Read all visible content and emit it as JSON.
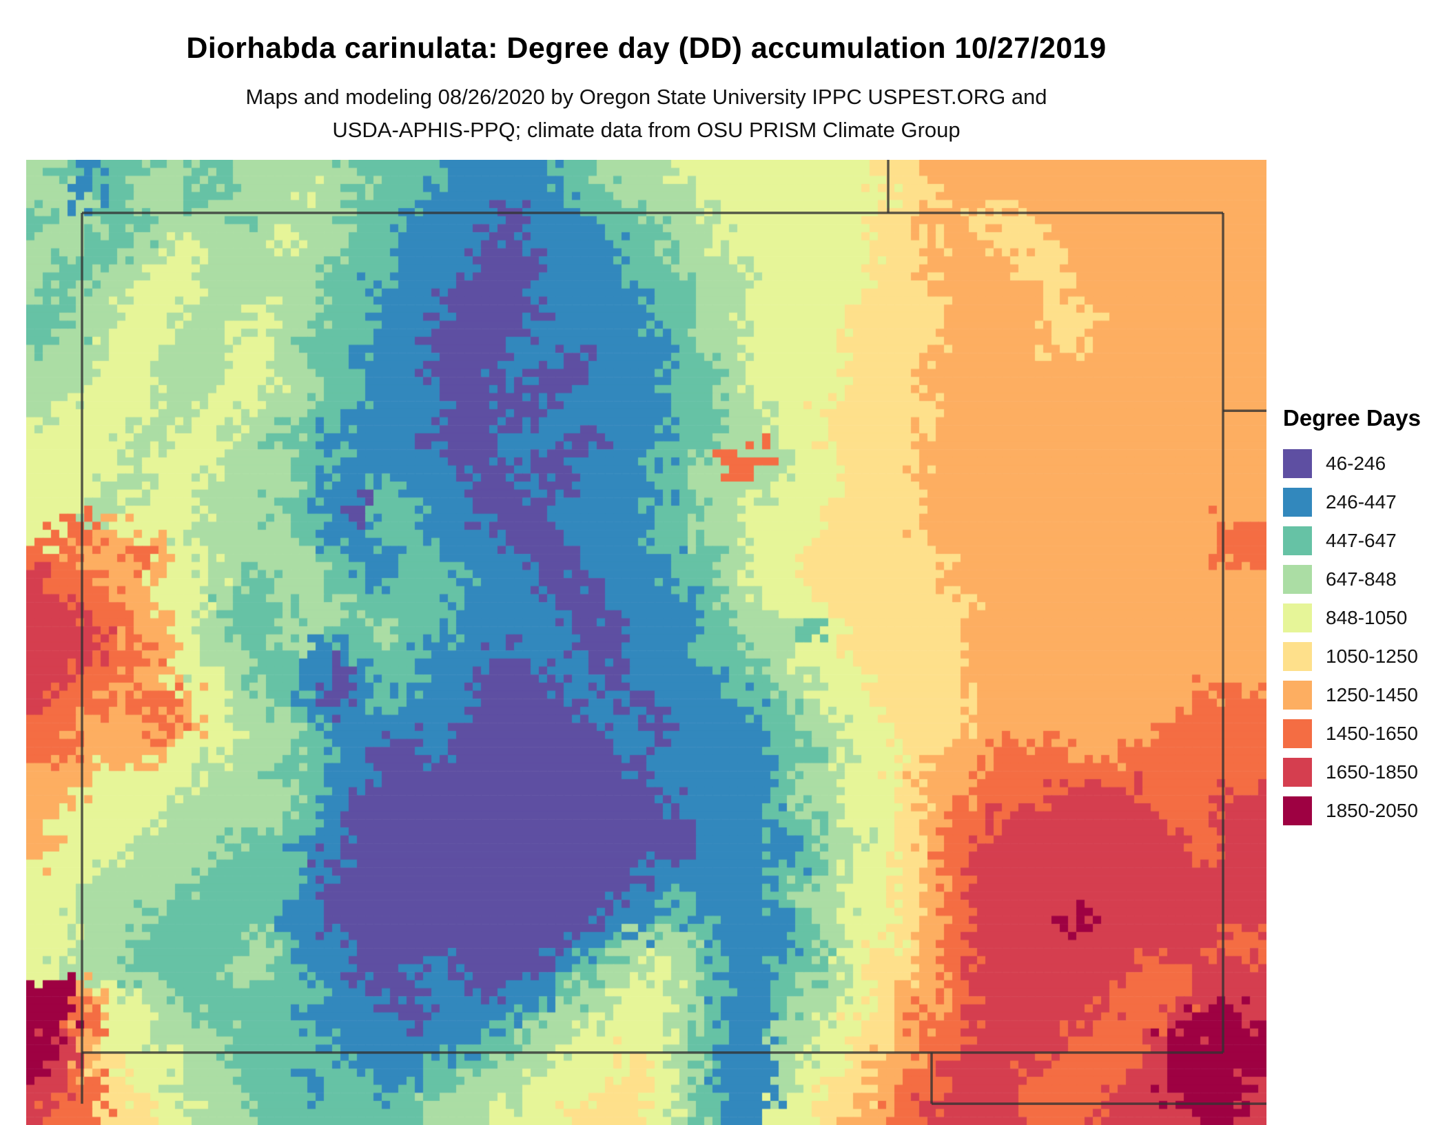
{
  "header": {
    "title": "Diorhabda carinulata: Degree day (DD) accumulation 10/27/2019",
    "subtitle_line1": "Maps and modeling 08/26/2020 by Oregon State University IPPC USPEST.ORG and",
    "subtitle_line2": "USDA-APHIS-PPQ; climate data from OSU PRISM Climate Group"
  },
  "legend": {
    "title": "Degree Days",
    "entries": [
      {
        "label": "46-246",
        "color": "#5e4fa2"
      },
      {
        "label": "246-447",
        "color": "#3288bd"
      },
      {
        "label": "447-647",
        "color": "#66c2a5"
      },
      {
        "label": "647-848",
        "color": "#abdda4"
      },
      {
        "label": "848-1050",
        "color": "#e6f598"
      },
      {
        "label": "1050-1250",
        "color": "#fee08b"
      },
      {
        "label": "1250-1450",
        "color": "#fdae61"
      },
      {
        "label": "1450-1650",
        "color": "#f46d43"
      },
      {
        "label": "1650-1850",
        "color": "#d53e4f"
      },
      {
        "label": "1850-2050",
        "color": "#9e0142"
      }
    ]
  },
  "map": {
    "region": "Colorado",
    "palette": [
      "#5e4fa2",
      "#3288bd",
      "#66c2a5",
      "#abdda4",
      "#e6f598",
      "#fee08b",
      "#fdae61",
      "#f46d43",
      "#d53e4f",
      "#9e0142"
    ],
    "border_color": "#333333",
    "border_lines": [
      {
        "x1": 0.045,
        "y1": 0.055,
        "x2": 0.045,
        "y2": 0.978
      },
      {
        "x1": 0.045,
        "y1": 0.055,
        "x2": 0.965,
        "y2": 0.055
      },
      {
        "x1": 0.965,
        "y1": 0.055,
        "x2": 0.965,
        "y2": 0.925
      },
      {
        "x1": 0.045,
        "y1": 0.925,
        "x2": 0.965,
        "y2": 0.925
      },
      {
        "x1": 0.695,
        "y1": 0.0,
        "x2": 0.695,
        "y2": 0.055
      },
      {
        "x1": 0.965,
        "y1": 0.26,
        "x2": 1.0,
        "y2": 0.26
      },
      {
        "x1": 0.73,
        "y1": 0.925,
        "x2": 0.73,
        "y2": 0.978
      },
      {
        "x1": 0.73,
        "y1": 0.978,
        "x2": 1.0,
        "y2": 0.978
      }
    ],
    "grid": [
      "32122332333332222111122333444444445566666666666666",
      "33123322333433221111112233344444444556666666666666",
      "23322333233332211110111223334444445566555666666666",
      "33223343334332211100111122334444445556655566666666",
      "32233443333322211100011122333444445566665566666666",
      "32334443333322111000111112233444445556666566666666",
      "22334433343322111000011112233444455556666556666666",
      "23344433443222110000111111233444455556666556666666",
      "33344333443221110001100111223444455566666666666666",
      "33444334443322111001001111223444455566666666666666",
      "34444334433221111000011111223344555556666666666666",
      "44443344332211110001110111223344555566666666666666",
      "44443444333221111001001112237734455566666666666666",
      "44433443333211211100101111233344455566666666666666",
      "44334443332210221100011112233444555566666666666666",
      "47764433333211221110001112233444555566666666666677",
      "77667644333321122111001111223445555556666666666677",
      "87766443323322122211100111223445555556666666666666",
      "88776443222332222111100111123344555555666666666666",
      "88876643223322322111110011122332455555666666666666",
      "88877643322112221110110011122334455555666666666666",
      "88776644322101221100011011112233445555666666666666",
      "87767764332101211100001101111223445555666666666777",
      "77666764433211111000000110111123344555666666667777",
      "77666644333221001000000011111122344556677766777777",
      "66644443332211000000000001111123344566777777777777",
      "66444433333210000000000000111123344566777888877788",
      "64444333332210000000000000011122344567788888887788",
      "64443333222110000000000000011112334567888888888788",
      "44433332222100000000000001111122344567888888888888",
      "44333322222100000000000011211123344567888888888888",
      "44333222221100000000000112211112344567888898888888",
      "44332222232110000000001233321112344567888888888877",
      "43332222332110011000012334321122345567888888877888",
      "99643322222211001101123344321123345667888888777888",
      "99744332222111101111233444321123445677888887778998",
      "98644333222211111122334444321133455677888877789999",
      "98654433222221112223344454321134456678888777789999",
      "88754433322122122333444554321134556778887777889998",
      "87755443322222223334445554321144566788887778888998"
    ]
  }
}
